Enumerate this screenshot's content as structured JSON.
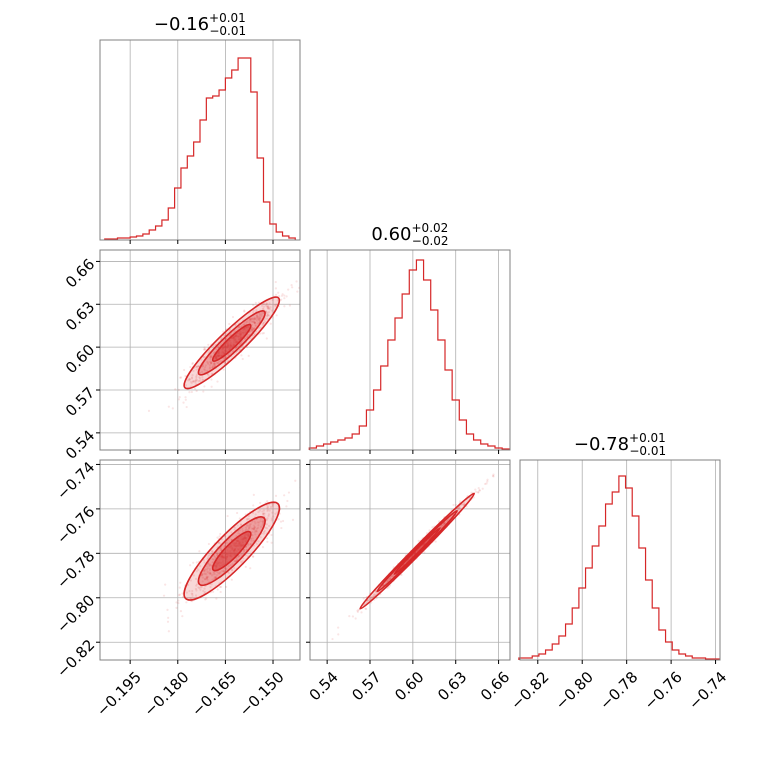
{
  "chart_data": {
    "type": "corner",
    "accent_color": "#d62728",
    "grid": true,
    "parameters": [
      {
        "median": "−0.16",
        "upper": "+0.01",
        "lower": "−0.01",
        "range": [
          -0.2045,
          -0.1415
        ],
        "ticks": [
          -0.195,
          -0.18,
          -0.165,
          -0.15
        ],
        "tick_labels": [
          "−0.195",
          "−0.180",
          "−0.165",
          "−0.150"
        ],
        "hist_x": [
          -0.202,
          -0.2,
          -0.198,
          -0.196,
          -0.194,
          -0.192,
          -0.19,
          -0.188,
          -0.186,
          -0.184,
          -0.182,
          -0.18,
          -0.178,
          -0.176,
          -0.174,
          -0.172,
          -0.17,
          -0.168,
          -0.166,
          -0.164,
          -0.162,
          -0.16,
          -0.158,
          -0.156,
          -0.154,
          -0.152,
          -0.15,
          -0.148,
          -0.146,
          -0.144
        ],
        "hist": [
          0.005,
          0.005,
          0.01,
          0.01,
          0.015,
          0.02,
          0.03,
          0.05,
          0.07,
          0.1,
          0.16,
          0.26,
          0.36,
          0.42,
          0.49,
          0.6,
          0.71,
          0.72,
          0.75,
          0.81,
          0.85,
          0.91,
          0.91,
          0.74,
          0.41,
          0.19,
          0.08,
          0.04,
          0.02,
          0.01
        ]
      },
      {
        "median": "0.60",
        "upper": "+0.02",
        "lower": "−0.02",
        "range": [
          0.528,
          0.668
        ],
        "ticks": [
          0.54,
          0.57,
          0.6,
          0.63,
          0.66
        ],
        "tick_labels": [
          "0.54",
          "0.57",
          "0.60",
          "0.63",
          "0.66"
        ],
        "hist_x": [
          0.53,
          0.535,
          0.54,
          0.545,
          0.55,
          0.555,
          0.56,
          0.565,
          0.57,
          0.575,
          0.58,
          0.585,
          0.59,
          0.595,
          0.6,
          0.605,
          0.61,
          0.615,
          0.62,
          0.625,
          0.63,
          0.635,
          0.64,
          0.645,
          0.65,
          0.655,
          0.66,
          0.665
        ],
        "hist": [
          0.01,
          0.02,
          0.03,
          0.04,
          0.05,
          0.06,
          0.08,
          0.12,
          0.2,
          0.3,
          0.42,
          0.55,
          0.66,
          0.78,
          0.9,
          0.95,
          0.85,
          0.7,
          0.55,
          0.4,
          0.25,
          0.15,
          0.08,
          0.05,
          0.03,
          0.02,
          0.01,
          0.005
        ]
      },
      {
        "median": "−0.78",
        "upper": "+0.01",
        "lower": "−0.01",
        "range": [
          -0.828,
          -0.738
        ],
        "ticks": [
          -0.82,
          -0.8,
          -0.78,
          -0.76,
          -0.74
        ],
        "tick_labels": [
          "−0.82",
          "−0.80",
          "−0.78",
          "−0.76",
          "−0.74"
        ],
        "hist_x": [
          -0.827,
          -0.824,
          -0.821,
          -0.818,
          -0.815,
          -0.812,
          -0.809,
          -0.806,
          -0.803,
          -0.8,
          -0.797,
          -0.794,
          -0.791,
          -0.788,
          -0.785,
          -0.782,
          -0.779,
          -0.776,
          -0.773,
          -0.77,
          -0.767,
          -0.764,
          -0.761,
          -0.758,
          -0.755,
          -0.752,
          -0.749,
          -0.746,
          -0.743,
          -0.74
        ],
        "hist": [
          0.01,
          0.01,
          0.02,
          0.03,
          0.05,
          0.08,
          0.12,
          0.18,
          0.26,
          0.36,
          0.46,
          0.57,
          0.67,
          0.78,
          0.84,
          0.92,
          0.86,
          0.72,
          0.56,
          0.4,
          0.26,
          0.15,
          0.09,
          0.05,
          0.03,
          0.02,
          0.01,
          0.01,
          0.005,
          0.005
        ]
      }
    ]
  }
}
